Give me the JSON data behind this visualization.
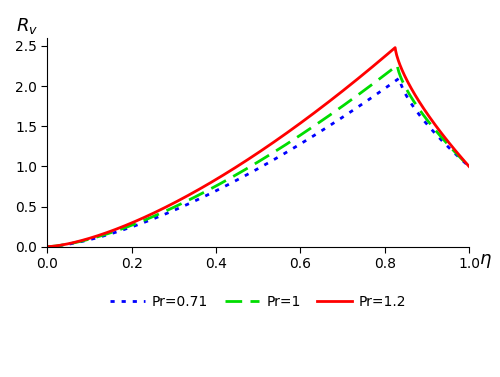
{
  "title": "",
  "xlabel": "η",
  "ylabel": "$R_v$",
  "xlim": [
    0.0,
    1.0
  ],
  "ylim": [
    0.0,
    2.6
  ],
  "yticks": [
    0.0,
    0.5,
    1.0,
    1.5,
    2.0,
    2.5
  ],
  "xticks": [
    0.0,
    0.2,
    0.4,
    0.6,
    0.8,
    1.0
  ],
  "curves": [
    {
      "label": "Pr=0.71",
      "color": "#0000ff",
      "linestyle": "dotted",
      "linewidth": 2.0,
      "peak_val": 2.1,
      "peak_eta": 0.835
    },
    {
      "label": "Pr=1",
      "color": "#00dd00",
      "linestyle": "dashed",
      "linewidth": 2.0,
      "peak_val": 2.26,
      "peak_eta": 0.83
    },
    {
      "label": "Pr=1.2",
      "color": "#ff0000",
      "linestyle": "solid",
      "linewidth": 2.0,
      "peak_val": 2.48,
      "peak_eta": 0.825
    }
  ],
  "background_color": "#ffffff"
}
